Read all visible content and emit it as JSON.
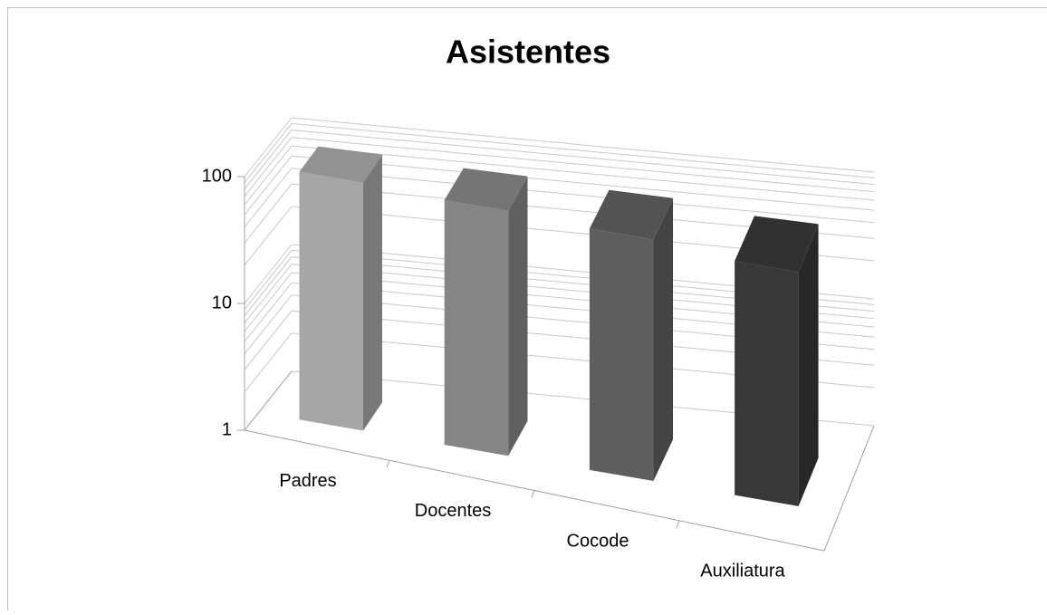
{
  "chart_data": {
    "type": "bar3d",
    "title": "Asistentes",
    "categories": [
      "Padres",
      "Docentes",
      "Cocode",
      "Auxiliatura"
    ],
    "values": [
      90,
      85,
      80,
      70
    ],
    "colors": [
      "#a6a6a6",
      "#858585",
      "#5e5e5e",
      "#383838"
    ],
    "ylim": [
      1,
      100
    ],
    "yticks": [
      1,
      10,
      100
    ],
    "log_scale": true,
    "grid": true
  }
}
